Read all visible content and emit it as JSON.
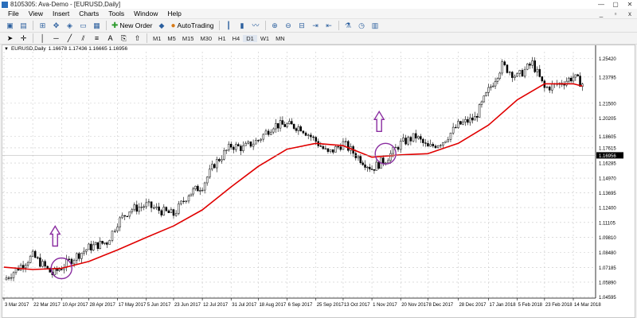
{
  "window": {
    "title": "8105305: Ava-Demo - [EURUSD,Daily]",
    "buttons": [
      "—",
      "▢",
      "✕"
    ]
  },
  "menu": {
    "items": [
      "File",
      "View",
      "Insert",
      "Charts",
      "Tools",
      "Window",
      "Help"
    ],
    "right_buttons": [
      "_",
      "▫",
      "x"
    ]
  },
  "toolbar": {
    "new_order_label": "New Order",
    "autotrading_label": "AutoTrading",
    "icons": [
      "new-chart-icon",
      "profiles-icon",
      "market-watch-icon",
      "navigator-icon",
      "data-window-icon",
      "terminal-icon",
      "strategy-tester-icon"
    ],
    "icons2": [
      "metaeditor-icon",
      "zoom-in-icon",
      "zoom-out-icon",
      "tile-icon",
      "chart-shift-icon",
      "autoscroll-icon",
      "indicators-icon",
      "periods-icon",
      "templates-icon"
    ]
  },
  "timeframes": [
    "M1",
    "M5",
    "M15",
    "M30",
    "H1",
    "H4",
    "D1",
    "W1",
    "MN"
  ],
  "selected_timeframe": "D1",
  "chart_header": {
    "symbol_label": "EURUSD,Daily",
    "ohlc": "1.16678 1.17436 1.16665 1.16956"
  },
  "colors": {
    "candle": "#000000",
    "ma_line": "#e00000",
    "annotation": "#8a2da0",
    "grid": "#c8c8c8"
  },
  "chart_data": {
    "type": "line",
    "y_tick_labels": [
      "1.25420",
      "1.23795",
      "1.21500",
      "1.20205",
      "1.18605",
      "1.17615",
      "1.16285",
      "1.14970",
      "1.13695",
      "1.12400",
      "1.11105",
      "1.09810",
      "1.08480",
      "1.07185",
      "1.05890",
      "1.04595"
    ],
    "current_price": "1.16956",
    "x_tick_labels": [
      "3 Mar 2017",
      "22 Mar 2017",
      "10 Apr 2017",
      "28 Apr 2017",
      "17 May 2017",
      "5 Jun 2017",
      "23 Jun 2017",
      "12 Jul 2017",
      "31 Jul 2017",
      "18 Aug 2017",
      "6 Sep 2017",
      "25 Sep 2017",
      "13 Oct 2017",
      "1 Nov 2017",
      "20 Nov 2017",
      "8 Dec 2017",
      "28 Dec 2017",
      "17 Jan 2018",
      "5 Feb 2018",
      "23 Feb 2018",
      "14 Mar 2018"
    ],
    "ylim": [
      1.045,
      1.26
    ],
    "price_series": [
      {
        "x": "3 Mar 2017",
        "y": 1.061
      },
      {
        "x": "22 Mar 2017",
        "y": 1.082
      },
      {
        "x": "4 Apr 2017",
        "y": 1.066
      },
      {
        "x": "10 Apr 2017",
        "y": 1.072
      },
      {
        "x": "20 Apr 2017",
        "y": 1.082
      },
      {
        "x": "28 Apr 2017",
        "y": 1.089
      },
      {
        "x": "10 May 2017",
        "y": 1.094
      },
      {
        "x": "17 May 2017",
        "y": 1.111
      },
      {
        "x": "25 May 2017",
        "y": 1.122
      },
      {
        "x": "5 Jun 2017",
        "y": 1.126
      },
      {
        "x": "15 Jun 2017",
        "y": 1.121
      },
      {
        "x": "23 Jun 2017",
        "y": 1.118
      },
      {
        "x": "3 Jul 2017",
        "y": 1.136
      },
      {
        "x": "12 Jul 2017",
        "y": 1.143
      },
      {
        "x": "20 Jul 2017",
        "y": 1.162
      },
      {
        "x": "31 Jul 2017",
        "y": 1.178
      },
      {
        "x": "8 Aug 2017",
        "y": 1.176
      },
      {
        "x": "18 Aug 2017",
        "y": 1.183
      },
      {
        "x": "28 Aug 2017",
        "y": 1.196
      },
      {
        "x": "6 Sep 2017",
        "y": 1.196
      },
      {
        "x": "15 Sep 2017",
        "y": 1.194
      },
      {
        "x": "25 Sep 2017",
        "y": 1.182
      },
      {
        "x": "3 Oct 2017",
        "y": 1.171
      },
      {
        "x": "13 Oct 2017",
        "y": 1.18
      },
      {
        "x": "23 Oct 2017",
        "y": 1.168
      },
      {
        "x": "1 Nov 2017",
        "y": 1.158
      },
      {
        "x": "10 Nov 2017",
        "y": 1.166
      },
      {
        "x": "20 Nov 2017",
        "y": 1.18
      },
      {
        "x": "30 Nov 2017",
        "y": 1.186
      },
      {
        "x": "8 Dec 2017",
        "y": 1.176
      },
      {
        "x": "18 Dec 2017",
        "y": 1.182
      },
      {
        "x": "28 Dec 2017",
        "y": 1.196
      },
      {
        "x": "8 Jan 2018",
        "y": 1.202
      },
      {
        "x": "17 Jan 2018",
        "y": 1.226
      },
      {
        "x": "26 Jan 2018",
        "y": 1.248
      },
      {
        "x": "5 Feb 2018",
        "y": 1.238
      },
      {
        "x": "15 Feb 2018",
        "y": 1.25
      },
      {
        "x": "23 Feb 2018",
        "y": 1.228
      },
      {
        "x": "5 Mar 2018",
        "y": 1.232
      },
      {
        "x": "14 Mar 2018",
        "y": 1.238
      },
      {
        "x": "20 Mar 2018",
        "y": 1.232
      }
    ],
    "ma_series": [
      {
        "x": "3 Mar 2017",
        "y": 1.072
      },
      {
        "x": "22 Mar 2017",
        "y": 1.07
      },
      {
        "x": "10 Apr 2017",
        "y": 1.071
      },
      {
        "x": "28 Apr 2017",
        "y": 1.077
      },
      {
        "x": "17 May 2017",
        "y": 1.087
      },
      {
        "x": "5 Jun 2017",
        "y": 1.098
      },
      {
        "x": "23 Jun 2017",
        "y": 1.108
      },
      {
        "x": "12 Jul 2017",
        "y": 1.122
      },
      {
        "x": "31 Jul 2017",
        "y": 1.142
      },
      {
        "x": "18 Aug 2017",
        "y": 1.16
      },
      {
        "x": "6 Sep 2017",
        "y": 1.175
      },
      {
        "x": "25 Sep 2017",
        "y": 1.18
      },
      {
        "x": "13 Oct 2017",
        "y": 1.178
      },
      {
        "x": "1 Nov 2017",
        "y": 1.168
      },
      {
        "x": "20 Nov 2017",
        "y": 1.17
      },
      {
        "x": "8 Dec 2017",
        "y": 1.171
      },
      {
        "x": "28 Dec 2017",
        "y": 1.18
      },
      {
        "x": "17 Jan 2018",
        "y": 1.196
      },
      {
        "x": "5 Feb 2018",
        "y": 1.218
      },
      {
        "x": "23 Feb 2018",
        "y": 1.232
      },
      {
        "x": "14 Mar 2018",
        "y": 1.232
      },
      {
        "x": "20 Mar 2018",
        "y": 1.23
      }
    ],
    "annotations": [
      {
        "type": "circle-arrow-up",
        "x": "10 Apr 2017",
        "y": 1.071
      },
      {
        "type": "circle-arrow-up",
        "x": "10 Nov 2017",
        "y": 1.171
      }
    ]
  }
}
